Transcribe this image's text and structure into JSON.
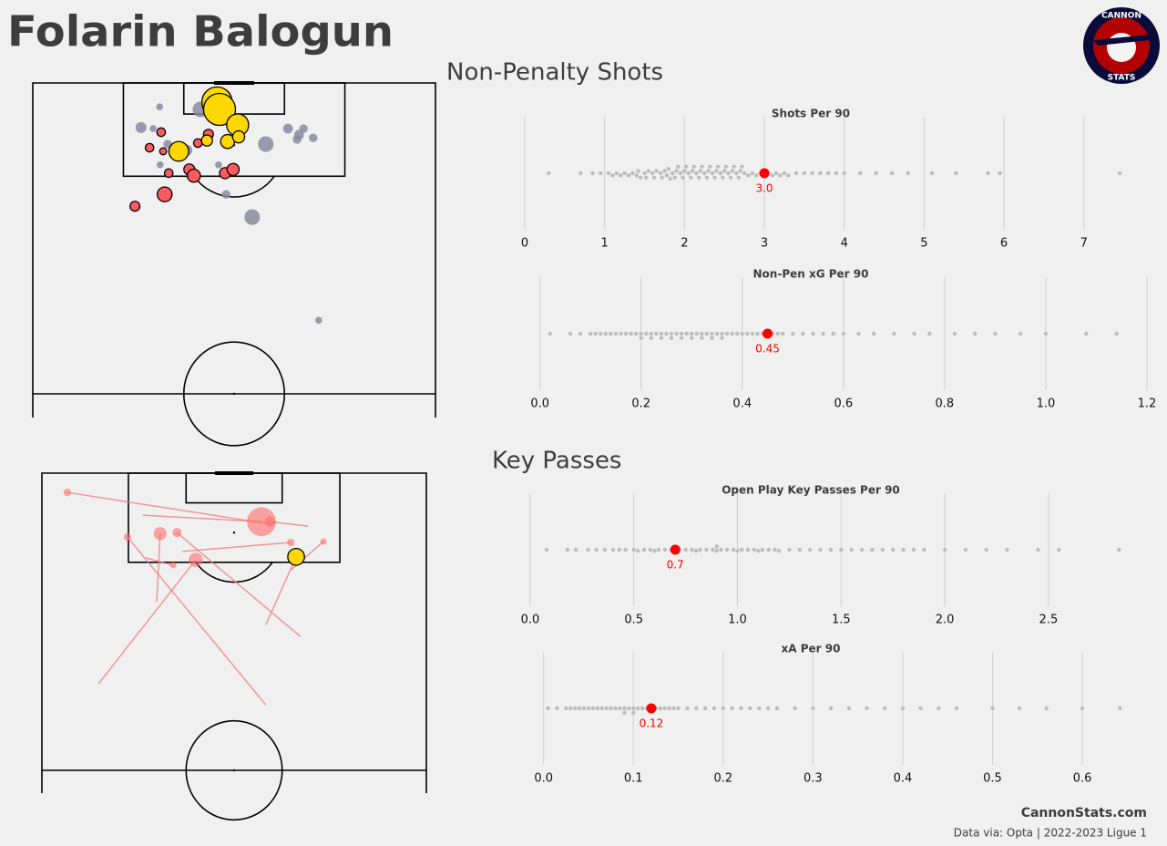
{
  "title": "Folarin Balogun",
  "logo": {
    "top": "CANNON",
    "bottom": "STATS"
  },
  "sections": [
    {
      "title": "Non-Penalty Shots"
    },
    {
      "title": "Key Passes"
    }
  ],
  "footer": {
    "site": "CannonStats.com",
    "source": "Data via: Opta | 2022-2023 Ligue 1"
  },
  "chart_data": [
    {
      "type": "shot_map",
      "xlim": [
        0,
        80
      ],
      "ylim": [
        0,
        60
      ],
      "series": [
        {
          "color": "#8a8aa0",
          "x": [
            25.2,
            21.5,
            23.9,
            33.3,
            26.8,
            30.6,
            25.3,
            36.9,
            46.3,
            50.7,
            53.8,
            52.9,
            52.5,
            55.7,
            38.4,
            43.6,
            56.8
          ],
          "y": [
            4.6,
            8.6,
            8.8,
            5.1,
            11.8,
            13.0,
            15.8,
            15.8,
            11.8,
            8.8,
            8.8,
            10.0,
            10.9,
            10.6,
            21.5,
            25.9,
            45.8
          ],
          "xg": [
            0.02,
            0.05,
            0.02,
            0.1,
            0.03,
            0.05,
            0.02,
            0.02,
            0.1,
            0.04,
            0.03,
            0.04,
            0.03,
            0.03,
            0.03,
            0.1,
            0.02
          ]
        },
        {
          "color": "#ff5a5f",
          "x": [
            34.9,
            32.8,
            23.2,
            25.5,
            25.9,
            27.0,
            31.1,
            32.0,
            38.2,
            39.8,
            26.2,
            20.3
          ],
          "y": [
            9.9,
            11.6,
            12.5,
            9.5,
            13.2,
            17.4,
            16.7,
            17.9,
            17.4,
            16.7,
            21.5,
            23.8
          ],
          "xg": [
            0.04,
            0.03,
            0.03,
            0.03,
            0.02,
            0.03,
            0.05,
            0.07,
            0.05,
            0.06,
            0.09,
            0.04
          ]
        },
        {
          "color": "#ffd700",
          "x": [
            36.6,
            37.1,
            40.7,
            29.0,
            34.6,
            38.7,
            40.9
          ],
          "y": [
            3.7,
            5.1,
            8.1,
            13.2,
            11.1,
            11.3,
            10.4
          ],
          "xg": [
            0.38,
            0.42,
            0.2,
            0.16,
            0.05,
            0.08,
            0.06
          ]
        }
      ]
    },
    {
      "type": "swarm",
      "title": "Shots Per 90",
      "xlim": [
        0,
        7.79
      ],
      "xticks": [
        0,
        1,
        2,
        3,
        4,
        5,
        6,
        7
      ],
      "color": "#bbbbbb",
      "player_color": "#ff0000",
      "player_value": 3.0,
      "value_label": "3.0",
      "values": [
        0.3,
        0.7,
        0.85,
        0.95,
        1.05,
        1.1,
        1.15,
        1.2,
        1.25,
        1.3,
        1.35,
        1.4,
        1.42,
        1.45,
        1.5,
        1.52,
        1.55,
        1.6,
        1.62,
        1.65,
        1.7,
        1.72,
        1.75,
        1.78,
        1.8,
        1.82,
        1.85,
        1.88,
        1.9,
        1.92,
        1.95,
        1.98,
        2.0,
        2.02,
        2.05,
        2.08,
        2.1,
        2.12,
        2.15,
        2.18,
        2.2,
        2.22,
        2.25,
        2.28,
        2.3,
        2.32,
        2.35,
        2.38,
        2.4,
        2.42,
        2.45,
        2.48,
        2.5,
        2.52,
        2.55,
        2.58,
        2.6,
        2.62,
        2.65,
        2.68,
        2.7,
        2.72,
        2.75,
        2.8,
        2.85,
        2.9,
        2.95,
        3.0,
        3.05,
        3.1,
        3.15,
        3.2,
        3.25,
        3.3,
        3.4,
        3.5,
        3.6,
        3.7,
        3.8,
        3.9,
        4.0,
        4.2,
        4.4,
        4.6,
        4.8,
        5.1,
        5.4,
        5.8,
        5.95,
        7.45
      ]
    },
    {
      "type": "swarm",
      "title": "Non-Pen xG Per 90",
      "xlim": [
        -0.03,
        1.2
      ],
      "xticks": [
        {
          "value": 0,
          "label": "0.0"
        },
        0.2,
        0.4,
        0.6,
        0.8,
        {
          "value": 1,
          "label": "1.0"
        },
        1.2
      ],
      "color": "#bbbbbb",
      "player_color": "#ff0000",
      "player_value": 0.45,
      "values": [
        0.02,
        0.06,
        0.08,
        0.1,
        0.11,
        0.12,
        0.13,
        0.14,
        0.15,
        0.16,
        0.17,
        0.18,
        0.19,
        0.2,
        0.2,
        0.21,
        0.22,
        0.22,
        0.23,
        0.24,
        0.24,
        0.25,
        0.26,
        0.26,
        0.27,
        0.28,
        0.28,
        0.29,
        0.3,
        0.3,
        0.31,
        0.32,
        0.32,
        0.33,
        0.34,
        0.34,
        0.35,
        0.36,
        0.36,
        0.37,
        0.38,
        0.39,
        0.4,
        0.41,
        0.42,
        0.43,
        0.44,
        0.45,
        0.46,
        0.47,
        0.48,
        0.5,
        0.52,
        0.54,
        0.56,
        0.58,
        0.6,
        0.63,
        0.66,
        0.7,
        0.74,
        0.77,
        0.82,
        0.86,
        0.9,
        0.95,
        1.0,
        1.08,
        1.14
      ]
    },
    {
      "type": "pass_map",
      "xlim": [
        0,
        80
      ],
      "ylim": [
        0,
        60
      ],
      "line_color": "#f08080",
      "series": [
        {
          "color": "#ff6b6b",
          "x0": [
            47.6,
            21.0,
            55.4,
            23.9,
            53.8,
            11.8,
            46.6,
            51.9,
            29.2,
            21.6
          ],
          "y0": [
            10.3,
            8.5,
            10.7,
            26.0,
            33.0,
            42.5,
            46.8,
            19.5,
            15.8,
            17.1
          ],
          "x": [
            5.3,
            45.7,
            47.4,
            24.6,
            28.1,
            32.0,
            17.8,
            58.6,
            51.8,
            27.3
          ],
          "y": [
            3.9,
            9.8,
            9.8,
            12.2,
            12.0,
            17.5,
            12.9,
            13.8,
            14.0,
            18.6
          ],
          "xa": [
            0.02,
            0.3,
            0.04,
            0.06,
            0.03,
            0.07,
            0.02,
            0.01,
            0.02,
            0.01
          ]
        },
        {
          "color": "#ffd700",
          "x0": [
            46.6
          ],
          "y0": [
            30.6
          ],
          "x": [
            52.9
          ],
          "y": [
            16.9
          ],
          "xa": [
            0.1
          ]
        }
      ]
    },
    {
      "type": "swarm",
      "title": "Open Play Key Passes Per 90",
      "xlim": [
        -0.026,
        2.975
      ],
      "xticks": [
        {
          "value": 0,
          "label": "0.0"
        },
        0.5,
        {
          "value": 1,
          "label": "1.0"
        },
        1.5,
        {
          "value": 2,
          "label": "2.0"
        },
        2.5
      ],
      "color": "#bbbbbb",
      "player_color": "#ff0000",
      "player_value": 0.7,
      "values": [
        0.08,
        0.18,
        0.22,
        0.28,
        0.32,
        0.36,
        0.4,
        0.43,
        0.46,
        0.5,
        0.52,
        0.55,
        0.58,
        0.6,
        0.62,
        0.65,
        0.68,
        0.7,
        0.72,
        0.75,
        0.78,
        0.8,
        0.82,
        0.85,
        0.88,
        0.9,
        0.9,
        0.92,
        0.95,
        0.98,
        1.0,
        1.02,
        1.05,
        1.08,
        1.1,
        1.12,
        1.15,
        1.18,
        1.2,
        1.25,
        1.3,
        1.35,
        1.4,
        1.45,
        1.5,
        1.55,
        1.6,
        1.65,
        1.7,
        1.75,
        1.8,
        1.85,
        1.9,
        2.0,
        2.1,
        2.2,
        2.3,
        2.45,
        2.55,
        2.84
      ]
    },
    {
      "type": "swarm",
      "title": "xA Per 90",
      "xlim": [
        -0.021,
        0.672
      ],
      "xticks": [
        {
          "value": 0,
          "label": "0.0"
        },
        0.1,
        0.2,
        0.3,
        0.4,
        0.5,
        0.6
      ],
      "color": "#bbbbbb",
      "player_color": "#ff0000",
      "player_value": 0.12,
      "values": [
        0.005,
        0.015,
        0.025,
        0.03,
        0.035,
        0.04,
        0.045,
        0.05,
        0.055,
        0.06,
        0.065,
        0.07,
        0.075,
        0.08,
        0.085,
        0.09,
        0.09,
        0.095,
        0.1,
        0.1,
        0.105,
        0.11,
        0.115,
        0.12,
        0.125,
        0.13,
        0.135,
        0.14,
        0.145,
        0.15,
        0.16,
        0.17,
        0.18,
        0.19,
        0.2,
        0.21,
        0.22,
        0.23,
        0.24,
        0.25,
        0.26,
        0.28,
        0.3,
        0.32,
        0.34,
        0.36,
        0.38,
        0.4,
        0.42,
        0.44,
        0.46,
        0.5,
        0.53,
        0.56,
        0.6,
        0.642
      ]
    }
  ]
}
